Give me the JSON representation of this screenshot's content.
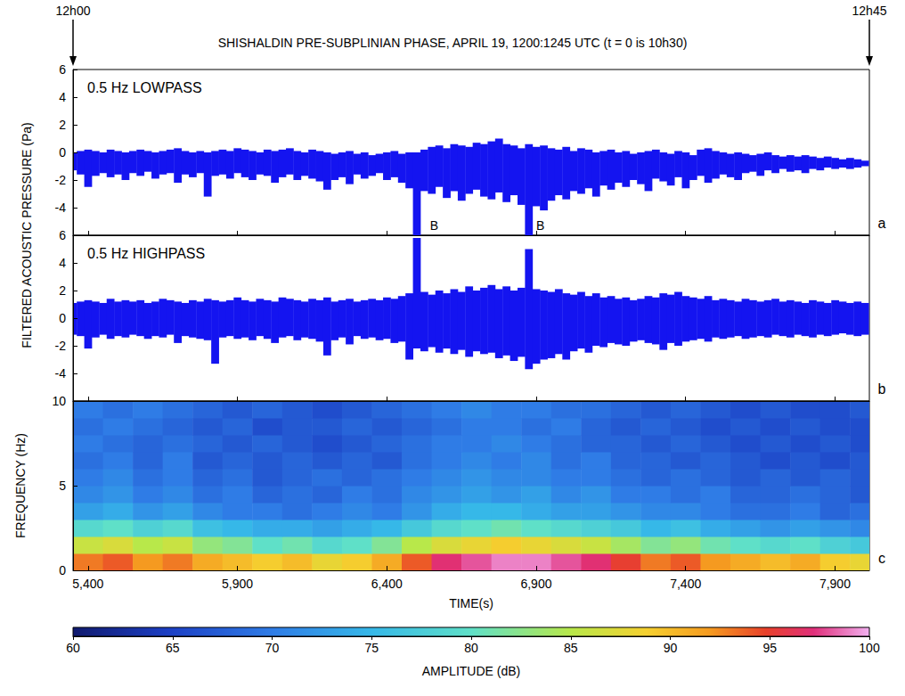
{
  "chart_data": {
    "type": "multi-panel",
    "title": "SHISHALDIN PRE-SUBPLINIAN PHASE, APRIL 19, 1200:1245 UTC (t = 0 is 10h30)",
    "start_label": "12h00",
    "end_label": "12h45",
    "pressure_label": "FILTERED ACOUSTIC PRESSURE (Pa)",
    "xlim": [
      5350,
      8015
    ],
    "xticks": [
      5400,
      5900,
      6400,
      6900,
      7400,
      7900
    ],
    "panels": [
      {
        "type": "waveform",
        "letter": "a",
        "label": "0.5 Hz LOWPASS",
        "color": "#1414f0",
        "ylim": [
          -6,
          6
        ],
        "yticks": [
          -4,
          -2,
          0,
          2,
          4,
          6
        ],
        "grid": false,
        "tick_labels": "y",
        "x": [
          5350,
          5375,
          5400,
          5425,
          5450,
          5475,
          5500,
          5525,
          5550,
          5575,
          5600,
          5625,
          5650,
          5675,
          5700,
          5725,
          5750,
          5775,
          5800,
          5825,
          5850,
          5875,
          5900,
          5925,
          5950,
          5975,
          6000,
          6025,
          6050,
          6075,
          6100,
          6125,
          6150,
          6175,
          6200,
          6225,
          6250,
          6275,
          6300,
          6325,
          6350,
          6375,
          6400,
          6425,
          6450,
          6475,
          6500,
          6525,
          6550,
          6575,
          6600,
          6625,
          6650,
          6675,
          6700,
          6725,
          6750,
          6775,
          6800,
          6825,
          6850,
          6875,
          6900,
          6925,
          6950,
          6975,
          7000,
          7025,
          7050,
          7075,
          7100,
          7125,
          7150,
          7175,
          7200,
          7225,
          7250,
          7275,
          7300,
          7325,
          7350,
          7375,
          7400,
          7425,
          7450,
          7475,
          7500,
          7525,
          7550,
          7575,
          7600,
          7625,
          7650,
          7675,
          7700,
          7725,
          7750,
          7775,
          7800,
          7825,
          7850,
          7875,
          7900,
          7925,
          7950,
          7975,
          8000
        ],
        "upper": [
          0.0,
          0.1,
          0.2,
          0.1,
          0.0,
          0.2,
          0.1,
          0.0,
          0.1,
          0.2,
          0.1,
          0.0,
          0.1,
          0.2,
          0.3,
          0.1,
          0.0,
          0.1,
          0.0,
          0.1,
          0.2,
          0.1,
          0.3,
          0.2,
          0.1,
          0.0,
          0.2,
          0.1,
          0.2,
          0.3,
          0.1,
          0.0,
          0.2,
          0.1,
          0.0,
          -0.1,
          0.0,
          0.1,
          -0.1,
          0.0,
          -0.2,
          -0.1,
          0.0,
          0.1,
          -0.1,
          0.0,
          0.0,
          0.2,
          0.4,
          0.5,
          0.3,
          0.6,
          0.5,
          0.4,
          0.7,
          0.6,
          0.8,
          1.0,
          0.6,
          0.5,
          0.3,
          0.6,
          0.4,
          0.5,
          0.3,
          0.2,
          0.4,
          0.1,
          0.3,
          0.2,
          0.0,
          0.1,
          0.2,
          0.0,
          0.1,
          -0.1,
          0.0,
          0.1,
          0.2,
          0.0,
          -0.1,
          0.1,
          0.0,
          -0.2,
          0.2,
          0.3,
          0.1,
          0.0,
          -0.1,
          0.0,
          -0.1,
          -0.2,
          -0.1,
          0.0,
          -0.2,
          -0.3,
          -0.2,
          -0.3,
          -0.2,
          -0.3,
          -0.4,
          -0.3,
          -0.4,
          -0.5,
          -0.4,
          -0.5,
          -0.6
        ],
        "lower": [
          -1.3,
          -1.6,
          -2.5,
          -1.7,
          -1.5,
          -1.8,
          -1.6,
          -2.0,
          -1.5,
          -1.7,
          -1.4,
          -1.9,
          -1.6,
          -1.5,
          -2.2,
          -1.6,
          -1.8,
          -1.5,
          -3.2,
          -1.7,
          -1.6,
          -1.9,
          -1.5,
          -1.8,
          -2.0,
          -1.6,
          -1.7,
          -2.2,
          -1.8,
          -1.6,
          -2.0,
          -1.7,
          -1.9,
          -2.1,
          -2.7,
          -2.0,
          -1.8,
          -2.3,
          -1.6,
          -1.9,
          -1.7,
          -1.5,
          -2.0,
          -1.8,
          -2.2,
          -2.6,
          -6.0,
          -2.8,
          -3.0,
          -2.5,
          -3.3,
          -2.8,
          -3.5,
          -3.0,
          -2.7,
          -3.2,
          -3.4,
          -2.9,
          -3.6,
          -3.1,
          -3.8,
          -6.0,
          -3.9,
          -4.2,
          -3.5,
          -3.1,
          -3.4,
          -2.8,
          -3.0,
          -2.6,
          -3.2,
          -2.4,
          -2.7,
          -2.2,
          -2.5,
          -2.0,
          -2.3,
          -2.8,
          -1.9,
          -2.1,
          -2.4,
          -1.8,
          -2.6,
          -2.0,
          -1.7,
          -2.2,
          -1.9,
          -1.6,
          -1.8,
          -2.0,
          -1.5,
          -1.4,
          -1.7,
          -1.3,
          -1.5,
          -1.2,
          -1.4,
          -1.3,
          -1.5,
          -1.2,
          -1.3,
          -1.1,
          -1.2,
          -1.1,
          -1.2,
          -1.1,
          -1.0
        ],
        "annotations": [
          {
            "x": 6545,
            "y": -5.3,
            "text": "B"
          },
          {
            "x": 6900,
            "y": -5.3,
            "text": "B"
          }
        ]
      },
      {
        "type": "waveform",
        "letter": "b",
        "label": "0.5 Hz HIGHPASS",
        "color": "#1414f0",
        "ylim": [
          -6,
          6
        ],
        "yticks": [
          -4,
          -2,
          0,
          2,
          4,
          6
        ],
        "grid": false,
        "tick_labels": "y",
        "x": [
          5350,
          5375,
          5400,
          5425,
          5450,
          5475,
          5500,
          5525,
          5550,
          5575,
          5600,
          5625,
          5650,
          5675,
          5700,
          5725,
          5750,
          5775,
          5800,
          5825,
          5850,
          5875,
          5900,
          5925,
          5950,
          5975,
          6000,
          6025,
          6050,
          6075,
          6100,
          6125,
          6150,
          6175,
          6200,
          6225,
          6250,
          6275,
          6300,
          6325,
          6350,
          6375,
          6400,
          6425,
          6450,
          6475,
          6500,
          6525,
          6550,
          6575,
          6600,
          6625,
          6650,
          6675,
          6700,
          6725,
          6750,
          6775,
          6800,
          6825,
          6850,
          6875,
          6900,
          6925,
          6950,
          6975,
          7000,
          7025,
          7050,
          7075,
          7100,
          7125,
          7150,
          7175,
          7200,
          7225,
          7250,
          7275,
          7300,
          7325,
          7350,
          7375,
          7400,
          7425,
          7450,
          7475,
          7500,
          7525,
          7550,
          7575,
          7600,
          7625,
          7650,
          7675,
          7700,
          7725,
          7750,
          7775,
          7800,
          7825,
          7850,
          7875,
          7900,
          7925,
          7950,
          7975,
          8000
        ],
        "upper": [
          1.1,
          1.2,
          1.3,
          1.2,
          1.1,
          1.4,
          1.2,
          1.3,
          1.2,
          1.3,
          1.1,
          1.2,
          1.4,
          1.3,
          1.2,
          1.1,
          1.3,
          1.2,
          1.4,
          1.3,
          1.2,
          1.3,
          1.5,
          1.3,
          1.2,
          1.4,
          1.3,
          1.2,
          1.5,
          1.4,
          1.3,
          1.2,
          1.4,
          1.3,
          1.5,
          1.2,
          1.3,
          1.4,
          1.2,
          1.3,
          1.4,
          1.3,
          1.5,
          1.4,
          1.6,
          1.8,
          5.8,
          1.9,
          1.7,
          2.0,
          1.8,
          2.1,
          1.9,
          2.3,
          2.0,
          2.2,
          2.4,
          2.1,
          2.3,
          2.0,
          2.2,
          5.0,
          2.1,
          2.0,
          1.9,
          2.1,
          1.8,
          1.7,
          1.9,
          1.6,
          1.8,
          1.5,
          1.6,
          1.4,
          1.5,
          1.3,
          1.4,
          1.6,
          1.5,
          1.8,
          1.7,
          1.9,
          1.6,
          1.5,
          1.4,
          1.6,
          1.3,
          1.4,
          1.3,
          1.2,
          1.4,
          1.3,
          1.2,
          1.3,
          1.4,
          1.2,
          1.3,
          1.2,
          1.1,
          1.3,
          1.2,
          1.1,
          1.3,
          1.2,
          1.1,
          1.2,
          1.1
        ],
        "lower": [
          -1.2,
          -1.3,
          -2.2,
          -1.4,
          -1.2,
          -1.5,
          -1.3,
          -1.4,
          -1.2,
          -1.3,
          -1.5,
          -1.3,
          -1.4,
          -1.2,
          -1.8,
          -1.3,
          -1.4,
          -1.5,
          -1.6,
          -3.3,
          -1.4,
          -1.3,
          -1.5,
          -1.4,
          -1.6,
          -1.3,
          -1.5,
          -1.8,
          -1.4,
          -1.3,
          -1.6,
          -1.4,
          -1.5,
          -1.7,
          -2.7,
          -1.6,
          -1.4,
          -1.9,
          -1.3,
          -1.5,
          -1.4,
          -1.6,
          -1.5,
          -1.8,
          -1.7,
          -3.0,
          -2.2,
          -2.4,
          -2.1,
          -2.5,
          -2.2,
          -2.6,
          -2.3,
          -2.8,
          -2.4,
          -2.6,
          -2.5,
          -2.9,
          -2.7,
          -3.1,
          -2.8,
          -3.7,
          -3.3,
          -3.0,
          -2.9,
          -2.6,
          -3.0,
          -2.4,
          -2.2,
          -2.5,
          -2.0,
          -2.1,
          -1.8,
          -1.9,
          -2.0,
          -1.7,
          -1.6,
          -1.8,
          -1.9,
          -2.3,
          -1.8,
          -2.0,
          -1.7,
          -1.6,
          -1.5,
          -1.7,
          -1.4,
          -1.5,
          -1.4,
          -1.3,
          -1.5,
          -1.4,
          -1.3,
          -1.4,
          -1.2,
          -1.3,
          -1.4,
          -1.2,
          -1.3,
          -1.4,
          -1.2,
          -1.3,
          -1.2,
          -1.1,
          -1.2,
          -1.3,
          -1.2
        ]
      },
      {
        "type": "heatmap",
        "letter": "c",
        "xlabel": "TIME(s)",
        "ylabel": "FREQUENCY (Hz)",
        "ylim": [
          0,
          10
        ],
        "yticks": [
          0,
          5,
          10
        ],
        "grid": false,
        "x": [
          5400,
          5500,
          5600,
          5700,
          5800,
          5900,
          6000,
          6100,
          6200,
          6300,
          6400,
          6500,
          6600,
          6700,
          6800,
          6900,
          7000,
          7100,
          7200,
          7300,
          7400,
          7500,
          7600,
          7700,
          7800,
          7900,
          8000
        ],
        "y": [
          0.5,
          1.5,
          2.5,
          3.5,
          4.5,
          5.5,
          6.5,
          7.5,
          8.5,
          9.5
        ],
        "cells": [
          [
            93,
            94,
            92,
            93,
            91,
            90,
            89,
            90,
            88,
            89,
            91,
            94,
            97,
            98,
            99,
            99,
            98,
            97,
            95,
            93,
            94,
            92,
            91,
            90,
            91,
            89,
            88
          ],
          [
            86,
            87,
            85,
            86,
            83,
            82,
            80,
            81,
            79,
            80,
            82,
            85,
            87,
            88,
            89,
            88,
            87,
            86,
            84,
            82,
            83,
            81,
            80,
            79,
            80,
            78,
            77
          ],
          [
            79,
            80,
            78,
            79,
            76,
            75,
            74,
            74,
            73,
            74,
            75,
            77,
            79,
            80,
            81,
            80,
            79,
            78,
            77,
            75,
            76,
            74,
            73,
            72,
            73,
            72,
            71
          ],
          [
            73,
            74,
            72,
            73,
            71,
            70,
            70,
            69,
            70,
            71,
            70,
            72,
            74,
            75,
            75,
            74,
            73,
            73,
            72,
            71,
            71,
            70,
            69,
            69,
            70,
            68,
            69
          ],
          [
            71,
            72,
            70,
            71,
            69,
            70,
            68,
            69,
            68,
            70,
            69,
            71,
            72,
            73,
            72,
            73,
            71,
            72,
            70,
            70,
            69,
            70,
            68,
            68,
            69,
            68,
            67
          ],
          [
            70,
            71,
            69,
            70,
            68,
            69,
            67,
            68,
            69,
            68,
            69,
            70,
            71,
            72,
            71,
            71,
            70,
            70,
            69,
            68,
            69,
            68,
            67,
            68,
            67,
            68,
            67
          ],
          [
            69,
            70,
            68,
            70,
            67,
            68,
            67,
            68,
            67,
            68,
            67,
            69,
            70,
            71,
            70,
            71,
            69,
            70,
            68,
            68,
            67,
            68,
            67,
            66,
            67,
            66,
            67
          ],
          [
            70,
            69,
            68,
            69,
            68,
            67,
            68,
            67,
            66,
            67,
            68,
            69,
            70,
            70,
            71,
            70,
            69,
            68,
            68,
            67,
            68,
            67,
            66,
            67,
            66,
            67,
            66
          ],
          [
            69,
            70,
            69,
            68,
            67,
            68,
            66,
            67,
            67,
            68,
            67,
            68,
            69,
            70,
            70,
            69,
            70,
            68,
            67,
            68,
            67,
            66,
            67,
            66,
            67,
            66,
            66
          ],
          [
            70,
            69,
            70,
            69,
            68,
            67,
            68,
            67,
            66,
            67,
            68,
            69,
            70,
            71,
            70,
            70,
            69,
            69,
            68,
            67,
            68,
            67,
            66,
            67,
            66,
            66,
            67
          ]
        ],
        "colorbar": {
          "label": "AMPLITUDE (dB)",
          "range": [
            60,
            100
          ],
          "ticks": [
            60,
            65,
            70,
            75,
            80,
            85,
            90,
            95,
            100
          ]
        }
      }
    ]
  }
}
